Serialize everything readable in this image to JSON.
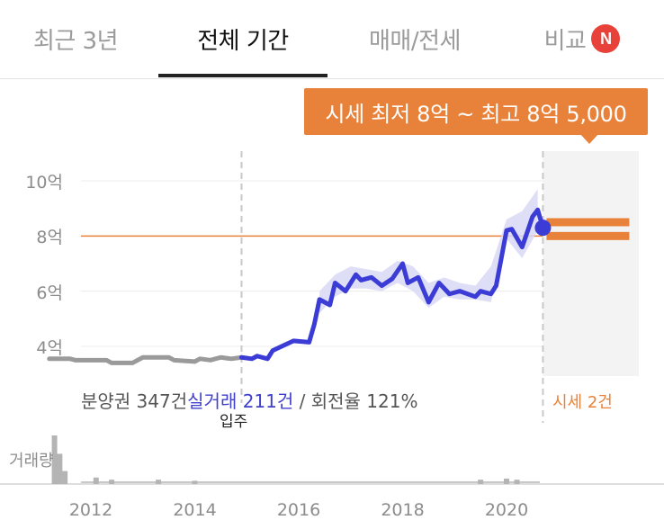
{
  "tabs": [
    {
      "label": "최근 3년",
      "active": false
    },
    {
      "label": "전체 기간",
      "active": true
    },
    {
      "label": "매매/전세",
      "active": false
    },
    {
      "label": "비교",
      "active": false,
      "badge": "N"
    }
  ],
  "tooltip": {
    "text": "시세 최저 8억 ~ 최고 8억 5,000"
  },
  "summary": {
    "presale": "분양권 347건",
    "actual": "실거래 211건",
    "turnover": " / 회전율 121%"
  },
  "movein_label": "입주",
  "forecast_label": "시세 2건",
  "volume_label": "거래량",
  "colors": {
    "accent": "#e8823a",
    "actual_line": "#3b3bd6",
    "presale_line": "#9a9a9a",
    "band": "#d8d8f4",
    "badge": "#e8413a"
  },
  "chart_data": {
    "type": "line",
    "y_unit": "억",
    "y_ticks": [
      "4억",
      "6억",
      "8억",
      "10억"
    ],
    "y_tick_values": [
      4,
      6,
      8,
      10
    ],
    "ylim": [
      3.3,
      10.2
    ],
    "x_ticks": [
      "2012",
      "2014",
      "2016",
      "2018",
      "2020"
    ],
    "xlim": [
      2011.2,
      2022.2
    ],
    "reference_line": {
      "value": 8.0
    },
    "forecast": {
      "start": 2020.7,
      "low": 8.0,
      "high": 8.5
    },
    "movein_year": 2014.9,
    "series": [
      {
        "kind": "presale",
        "x": [
          2011.2,
          2011.6,
          2011.7,
          2012.3,
          2012.4,
          2012.8,
          2013.0,
          2013.5,
          2013.6,
          2014.0,
          2014.1,
          2014.3,
          2014.5,
          2014.7,
          2014.9
        ],
        "y": [
          3.55,
          3.55,
          3.5,
          3.5,
          3.4,
          3.4,
          3.6,
          3.6,
          3.5,
          3.45,
          3.55,
          3.5,
          3.6,
          3.55,
          3.6
        ]
      },
      {
        "kind": "actual",
        "x": [
          2014.9,
          2015.1,
          2015.2,
          2015.4,
          2015.5,
          2015.9,
          2016.2,
          2016.3,
          2016.4,
          2016.6,
          2016.7,
          2016.9,
          2017.1,
          2017.2,
          2017.4,
          2017.6,
          2017.8,
          2018.0,
          2018.1,
          2018.3,
          2018.5,
          2018.7,
          2018.9,
          2019.1,
          2019.4,
          2019.5,
          2019.7,
          2019.8,
          2020.0,
          2020.1,
          2020.3,
          2020.5,
          2020.6,
          2020.7
        ],
        "y": [
          3.6,
          3.55,
          3.65,
          3.55,
          3.85,
          4.2,
          4.15,
          4.8,
          5.7,
          5.5,
          6.3,
          6.0,
          6.6,
          6.4,
          6.5,
          6.2,
          6.45,
          7.0,
          6.3,
          6.5,
          5.6,
          6.3,
          5.9,
          6.0,
          5.8,
          6.0,
          5.9,
          6.2,
          8.2,
          8.25,
          7.6,
          8.7,
          8.95,
          8.3
        ]
      }
    ],
    "band": {
      "x": [
        2016.4,
        2016.7,
        2017.0,
        2017.3,
        2017.6,
        2017.9,
        2018.2,
        2018.5,
        2018.8,
        2019.1,
        2019.4,
        2019.7,
        2020.0,
        2020.3,
        2020.6
      ],
      "low": [
        5.2,
        5.8,
        6.1,
        6.1,
        6.0,
        6.3,
        6.0,
        5.4,
        5.8,
        5.7,
        5.7,
        5.6,
        7.9,
        7.2,
        8.2
      ],
      "high": [
        6.0,
        6.6,
        6.9,
        6.8,
        6.7,
        7.1,
        6.9,
        6.3,
        6.5,
        6.3,
        6.2,
        6.9,
        8.6,
        8.9,
        9.7
      ]
    },
    "volume": {
      "years": [
        2011.3,
        2011.4,
        2011.5,
        2012.1,
        2012.4,
        2013.3,
        2014.0,
        2019.5,
        2020.0,
        2020.2
      ],
      "counts": [
        45,
        28,
        12,
        6,
        4,
        4,
        3,
        4,
        5,
        4
      ]
    }
  }
}
